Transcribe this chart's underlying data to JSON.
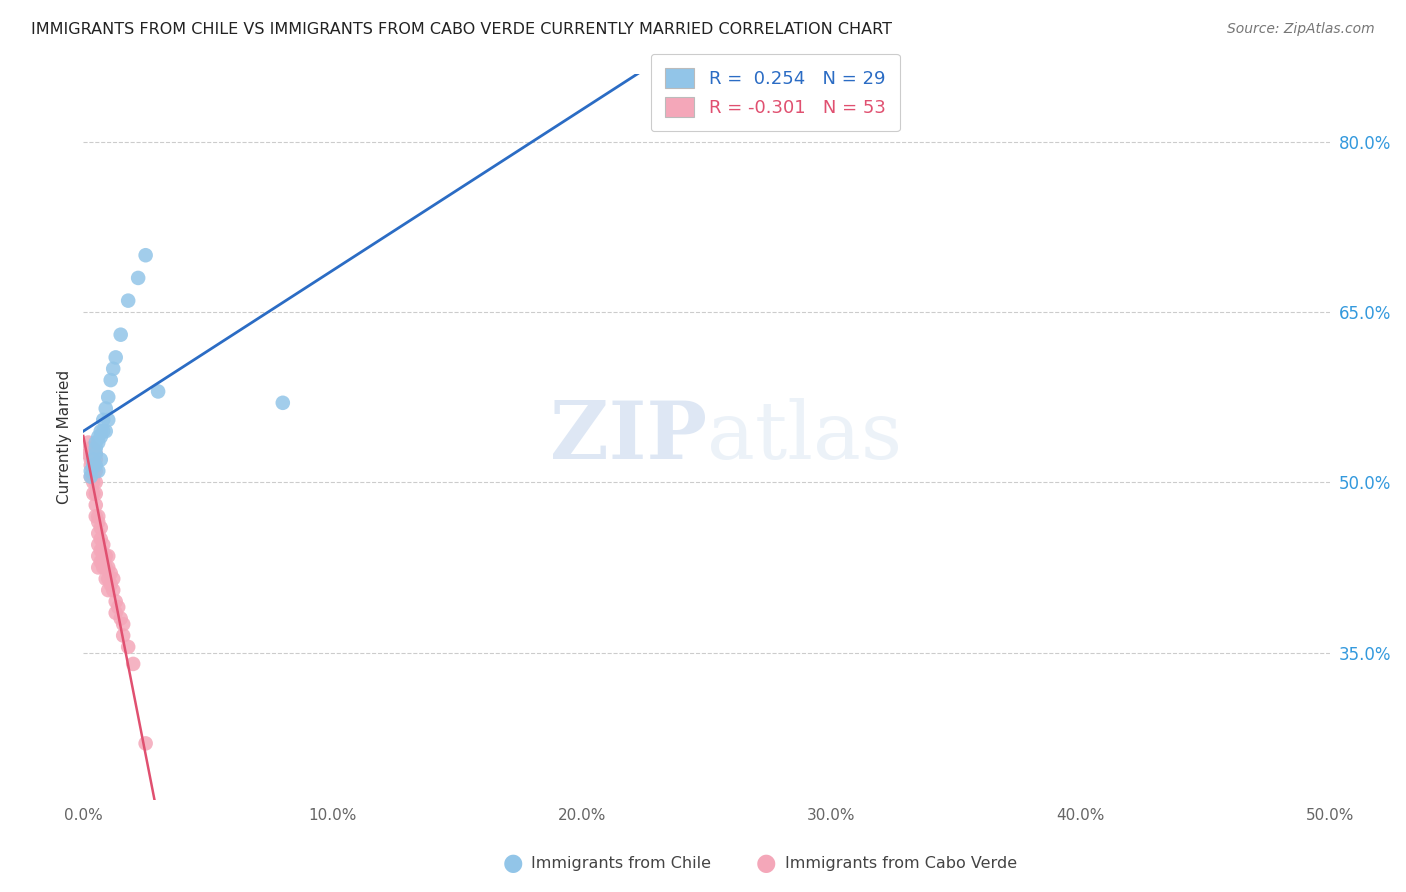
{
  "title": "IMMIGRANTS FROM CHILE VS IMMIGRANTS FROM CABO VERDE CURRENTLY MARRIED CORRELATION CHART",
  "source": "Source: ZipAtlas.com",
  "ylabel": "Currently Married",
  "xlim": [
    0.0,
    0.5
  ],
  "ylim": [
    0.22,
    0.86
  ],
  "xtick_labels": [
    "0.0%",
    "10.0%",
    "20.0%",
    "30.0%",
    "40.0%",
    "50.0%"
  ],
  "xtick_vals": [
    0.0,
    0.1,
    0.2,
    0.3,
    0.4,
    0.5
  ],
  "ytick_labels": [
    "35.0%",
    "50.0%",
    "65.0%",
    "80.0%"
  ],
  "ytick_vals": [
    0.35,
    0.5,
    0.65,
    0.8
  ],
  "grid_color": "#cccccc",
  "background_color": "#ffffff",
  "chile_color": "#92c5e8",
  "cabo_verde_color": "#f4a7b9",
  "chile_line_color": "#2b6cc4",
  "cabo_verde_line_color": "#e05070",
  "chile_R": 0.254,
  "chile_N": 29,
  "cabo_verde_R": -0.301,
  "cabo_verde_N": 53,
  "legend_label_chile": "Immigrants from Chile",
  "legend_label_cabo": "Immigrants from Cabo Verde",
  "watermark_zip": "ZIP",
  "watermark_atlas": "atlas",
  "chile_x": [
    0.003,
    0.003,
    0.004,
    0.004,
    0.005,
    0.005,
    0.005,
    0.005,
    0.006,
    0.006,
    0.006,
    0.007,
    0.007,
    0.007,
    0.008,
    0.008,
    0.009,
    0.009,
    0.01,
    0.01,
    0.011,
    0.012,
    0.013,
    0.015,
    0.018,
    0.022,
    0.025,
    0.03,
    0.08
  ],
  "chile_y": [
    0.505,
    0.51,
    0.52,
    0.515,
    0.535,
    0.53,
    0.525,
    0.515,
    0.54,
    0.535,
    0.51,
    0.545,
    0.54,
    0.52,
    0.555,
    0.545,
    0.565,
    0.545,
    0.575,
    0.555,
    0.59,
    0.6,
    0.61,
    0.63,
    0.66,
    0.68,
    0.7,
    0.58,
    0.57
  ],
  "cabo_x": [
    0.002,
    0.002,
    0.003,
    0.003,
    0.003,
    0.003,
    0.003,
    0.004,
    0.004,
    0.004,
    0.004,
    0.004,
    0.004,
    0.005,
    0.005,
    0.005,
    0.005,
    0.005,
    0.005,
    0.005,
    0.006,
    0.006,
    0.006,
    0.006,
    0.006,
    0.006,
    0.007,
    0.007,
    0.007,
    0.007,
    0.008,
    0.008,
    0.008,
    0.009,
    0.009,
    0.009,
    0.01,
    0.01,
    0.01,
    0.01,
    0.011,
    0.011,
    0.012,
    0.012,
    0.013,
    0.013,
    0.014,
    0.015,
    0.016,
    0.016,
    0.018,
    0.02,
    0.025
  ],
  "cabo_y": [
    0.535,
    0.525,
    0.53,
    0.525,
    0.52,
    0.515,
    0.505,
    0.53,
    0.52,
    0.51,
    0.505,
    0.5,
    0.49,
    0.525,
    0.52,
    0.51,
    0.5,
    0.49,
    0.48,
    0.47,
    0.47,
    0.465,
    0.455,
    0.445,
    0.435,
    0.425,
    0.46,
    0.45,
    0.44,
    0.43,
    0.445,
    0.435,
    0.425,
    0.435,
    0.425,
    0.415,
    0.435,
    0.425,
    0.415,
    0.405,
    0.42,
    0.41,
    0.415,
    0.405,
    0.395,
    0.385,
    0.39,
    0.38,
    0.375,
    0.365,
    0.355,
    0.34,
    0.27
  ]
}
